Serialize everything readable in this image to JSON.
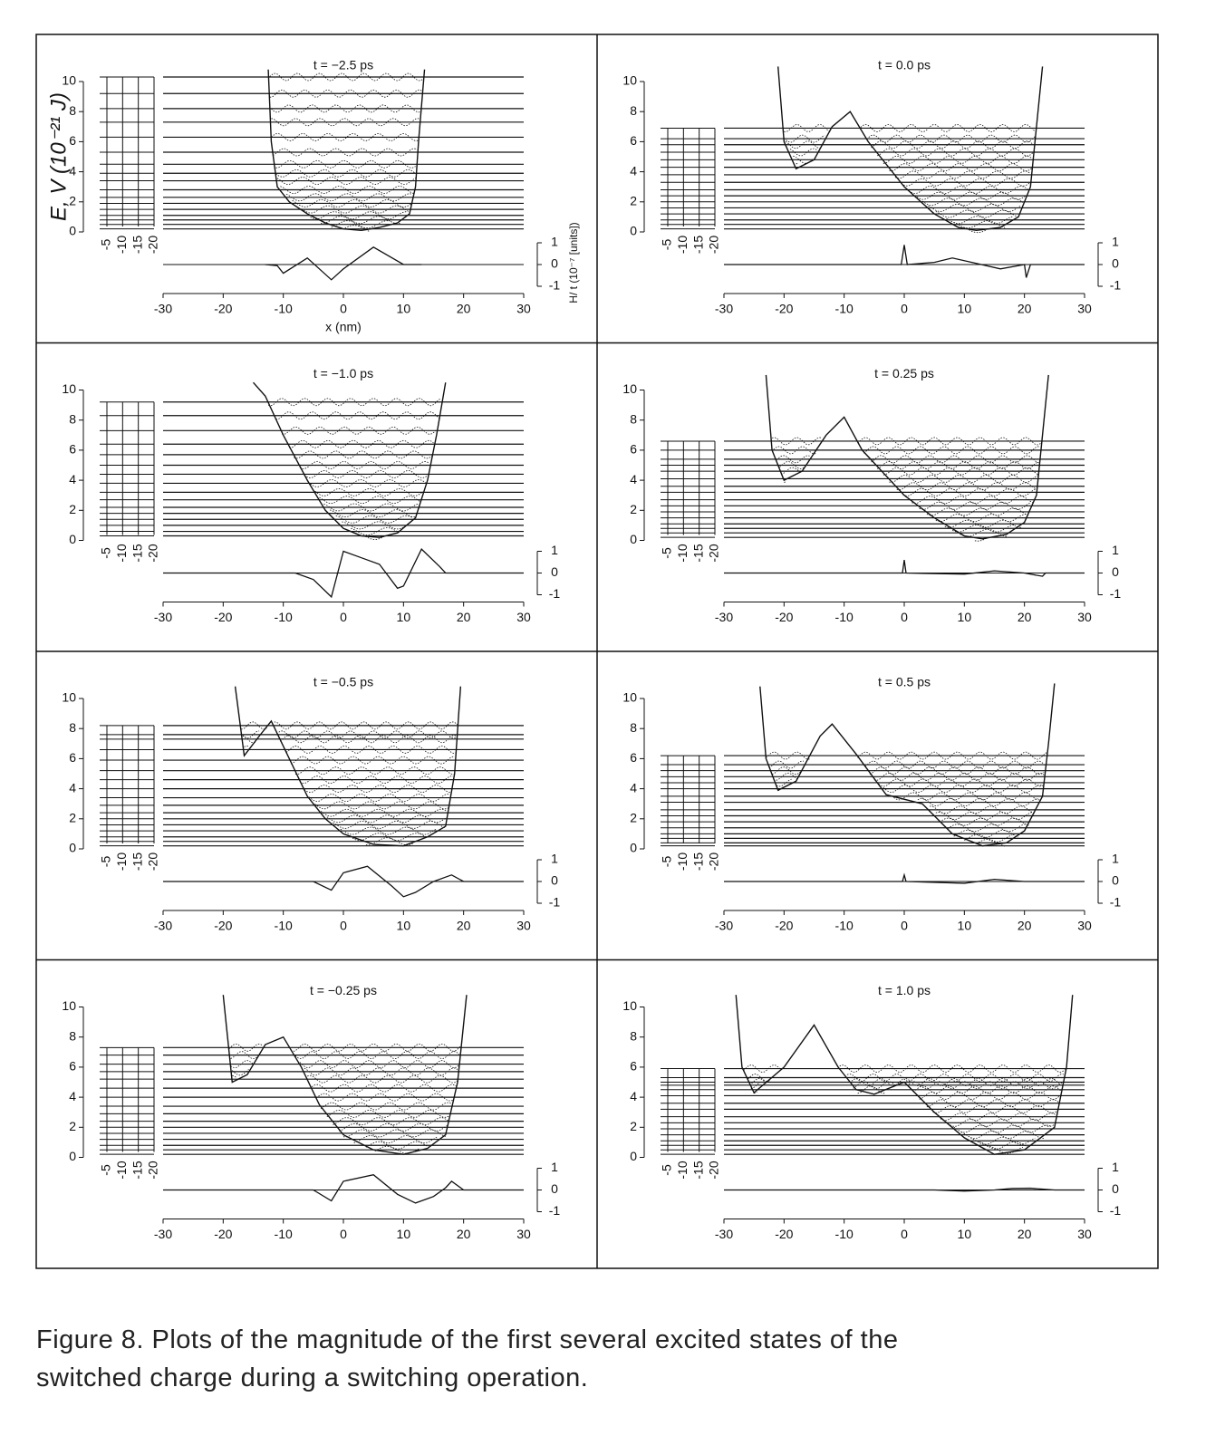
{
  "figure": {
    "y_label": "E, V (10⁻²¹ J)",
    "x_label": "x (nm)",
    "residual_label": "H/ t (10⁻⁷ [units])",
    "ylim": [
      0,
      10
    ],
    "yticks": [
      0,
      2,
      4,
      6,
      8,
      10
    ],
    "xlim": [
      -30,
      30
    ],
    "xticks": [
      -30,
      -20,
      -10,
      0,
      10,
      20,
      30
    ],
    "mini_ticks": [
      -5,
      -10,
      -15,
      -20
    ],
    "residual_lim": [
      -1,
      1
    ],
    "residual_ticks": [
      1,
      0,
      -1
    ],
    "panels": [
      {
        "title": "t = −2.5 ps",
        "levels": [
          0.2,
          0.5,
          0.8,
          1.1,
          1.5,
          1.9,
          2.3,
          2.8,
          3.4,
          3.9,
          4.5,
          5.3,
          6.3,
          7.3,
          8.2,
          9.2,
          10.3
        ],
        "potential": {
          "x": [
            -12.5,
            -12,
            -11,
            -9,
            -6,
            -3,
            0,
            3,
            6,
            9,
            11,
            12,
            12.5,
            13.5
          ],
          "V": [
            10.8,
            6,
            3,
            2,
            1.2,
            0.6,
            0.2,
            0.1,
            0.3,
            0.6,
            1.2,
            3,
            6,
            10.8
          ]
        },
        "residual": {
          "x": [
            -13,
            -11,
            -10,
            -6,
            -2,
            0,
            5,
            10,
            13
          ],
          "values": [
            0,
            -0.05,
            -0.4,
            0.3,
            -0.7,
            -0.2,
            0.8,
            0,
            0
          ]
        }
      },
      {
        "title": "t = 0.0 ps",
        "levels": [
          0.2,
          0.5,
          0.8,
          1.2,
          1.6,
          2.0,
          2.4,
          2.8,
          3.3,
          3.8,
          4.3,
          4.8,
          5.3,
          5.8,
          6.2,
          6.9
        ],
        "potential": {
          "x": [
            -21,
            -20,
            -18,
            -15,
            -12,
            -9,
            -6,
            0,
            5,
            9,
            12,
            16,
            19,
            21,
            22,
            23
          ],
          "V": [
            11,
            6,
            4.2,
            4.8,
            7,
            8,
            6,
            3,
            1.2,
            0.3,
            0.1,
            0.3,
            1,
            3,
            7,
            11
          ]
        },
        "residual": {
          "x": [
            -30,
            -0.5,
            0,
            0.5,
            5,
            8,
            12,
            16,
            20,
            20.3,
            21,
            23,
            30
          ],
          "values": [
            0,
            0,
            0.9,
            0,
            0.1,
            0.3,
            0.05,
            -0.2,
            0,
            -0.6,
            0,
            0,
            0
          ]
        }
      },
      {
        "title": "t = −1.0 ps",
        "levels": [
          0.3,
          0.6,
          1.0,
          1.4,
          1.8,
          2.2,
          2.7,
          3.2,
          3.8,
          4.4,
          5.0,
          5.7,
          6.4,
          7.3,
          8.3,
          9.2
        ],
        "potential": {
          "x": [
            -15,
            -13,
            -10,
            -6,
            -3,
            0,
            3,
            6,
            9,
            12,
            14,
            15.5,
            17
          ],
          "V": [
            10.5,
            9.6,
            7,
            4,
            2,
            0.8,
            0.3,
            0.2,
            0.5,
            1.5,
            4,
            7,
            10.5
          ]
        },
        "residual": {
          "x": [
            -30,
            -8,
            -5,
            -2,
            0,
            3,
            6,
            9,
            10,
            13,
            16,
            17,
            30
          ],
          "values": [
            0,
            0,
            -0.3,
            -1.1,
            1.0,
            0.7,
            0.4,
            -0.7,
            -0.6,
            1.1,
            0.3,
            0,
            0
          ]
        }
      },
      {
        "title": "t = 0.25 ps",
        "levels": [
          0.2,
          0.5,
          0.8,
          1.1,
          1.5,
          1.9,
          2.3,
          2.7,
          3.2,
          3.6,
          4.1,
          4.6,
          5.0,
          5.4,
          6.0,
          6.6
        ],
        "potential": {
          "x": [
            -23,
            -22,
            -20,
            -17,
            -13,
            -10,
            -7,
            0,
            5,
            10,
            13,
            17,
            20,
            22,
            23,
            24
          ],
          "V": [
            11,
            6,
            4.0,
            4.6,
            7,
            8.2,
            6,
            3,
            1.5,
            0.3,
            0.1,
            0.4,
            1.2,
            3,
            7,
            11
          ]
        },
        "residual": {
          "x": [
            -30,
            -0.3,
            0,
            0.3,
            10,
            15,
            20,
            23,
            23.5,
            30
          ],
          "values": [
            0,
            0,
            0.6,
            0,
            -0.05,
            0.1,
            0,
            -0.15,
            0,
            0
          ]
        }
      },
      {
        "title": "t = −0.5 ps",
        "levels": [
          0.2,
          0.5,
          0.8,
          1.2,
          1.6,
          2.0,
          2.4,
          2.9,
          3.4,
          4.0,
          4.6,
          5.2,
          5.9,
          6.6,
          7.3,
          7.6,
          8.2
        ],
        "potential": {
          "x": [
            -18,
            -16.5,
            -14,
            -12,
            -9,
            -6,
            -3,
            0,
            5,
            10,
            14,
            17,
            18.5,
            19.5
          ],
          "V": [
            10.8,
            6.2,
            7.5,
            8.5,
            6,
            3.5,
            2,
            1,
            0.3,
            0.2,
            0.8,
            1.5,
            5,
            10.8
          ]
        },
        "residual": {
          "x": [
            -30,
            -5,
            -2,
            0,
            4,
            8,
            10,
            12,
            15,
            17,
            18,
            20,
            30
          ],
          "values": [
            0,
            0,
            -0.4,
            0.4,
            0.7,
            -0.2,
            -0.7,
            -0.5,
            0,
            0.2,
            0.3,
            0,
            0
          ]
        }
      },
      {
        "title": "t = 0.5 ps",
        "levels": [
          0.2,
          0.4,
          0.7,
          1.0,
          1.4,
          1.8,
          2.2,
          2.6,
          3.1,
          3.5,
          4.0,
          4.4,
          4.8,
          5.2,
          5.6,
          6.2
        ],
        "potential": {
          "x": [
            -24,
            -23,
            -21,
            -18,
            -14,
            -12,
            -8,
            -3,
            3,
            8,
            13,
            17,
            20,
            23,
            24,
            25
          ],
          "V": [
            10.8,
            6,
            3.9,
            4.5,
            7.5,
            8.3,
            6.3,
            3.6,
            3.0,
            1,
            0.2,
            0.4,
            1.2,
            3.5,
            7,
            11
          ]
        },
        "residual": {
          "x": [
            -30,
            -0.3,
            0,
            0.3,
            10,
            15,
            20,
            30
          ],
          "values": [
            0,
            0,
            0.3,
            0,
            -0.08,
            0.1,
            0,
            0
          ]
        }
      },
      {
        "title": "t = −0.25 ps",
        "levels": [
          0.2,
          0.5,
          0.8,
          1.2,
          1.6,
          2.0,
          2.4,
          2.9,
          3.4,
          4.0,
          4.6,
          5.2,
          5.7,
          6.2,
          6.8,
          7.3
        ],
        "potential": {
          "x": [
            -20,
            -18.5,
            -16,
            -13,
            -10,
            -7,
            -4,
            0,
            5,
            10,
            14,
            17,
            19,
            20.5
          ],
          "V": [
            10.8,
            5,
            5.5,
            7.5,
            8,
            6,
            3.5,
            1.5,
            0.5,
            0.2,
            0.6,
            1.5,
            5,
            10.8
          ]
        },
        "residual": {
          "x": [
            -30,
            -5,
            -2,
            0,
            5,
            9,
            12,
            15,
            17,
            18,
            20,
            30
          ],
          "values": [
            0,
            0,
            -0.5,
            0.4,
            0.7,
            -0.2,
            -0.6,
            -0.3,
            0.1,
            0.4,
            0,
            0
          ]
        }
      },
      {
        "title": "t = 1.0 ps",
        "levels": [
          0.2,
          0.5,
          0.8,
          1.1,
          1.5,
          1.9,
          2.3,
          2.7,
          3.2,
          3.6,
          4.1,
          4.5,
          4.8,
          5.0,
          5.3,
          5.9
        ],
        "potential": {
          "x": [
            -28,
            -27,
            -25,
            -20,
            -15,
            -11,
            -8,
            -5,
            0,
            5,
            10,
            15,
            20,
            25,
            27,
            28
          ],
          "V": [
            10.8,
            6,
            4.3,
            6,
            8.8,
            6,
            4.5,
            4.2,
            5,
            3,
            1.3,
            0.2,
            0.5,
            2,
            6,
            10.8
          ]
        },
        "residual": {
          "x": [
            -30,
            5,
            10,
            15,
            18,
            21,
            25,
            30
          ],
          "values": [
            0,
            0,
            -0.05,
            0,
            0.07,
            0.08,
            0,
            0
          ]
        }
      }
    ]
  },
  "caption": [
    "Figure 8.  Plots of the magnitude of the first several excited states of the",
    "switched charge during a switching operation."
  ]
}
